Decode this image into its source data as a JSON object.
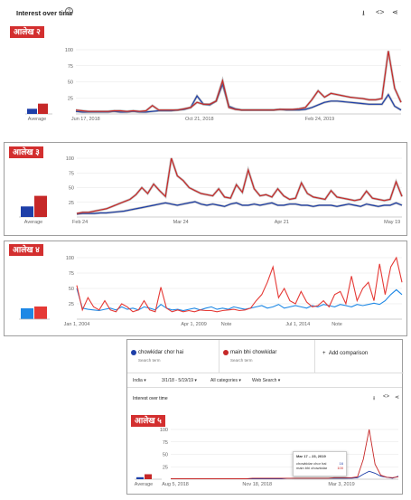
{
  "panel1": {
    "title": "Interest over time",
    "badge": "आलेख २",
    "average_label": "Average",
    "avg_values": [
      8,
      16
    ],
    "chart_data": {
      "type": "line",
      "x_ticks": [
        "Jun 17, 2018",
        "Oct 21, 2018",
        "Feb 24, 2019"
      ],
      "y_ticks": [
        "100",
        "75",
        "50",
        "25"
      ],
      "ylim": [
        0,
        100
      ],
      "series": [
        {
          "color": "#1e3fa8",
          "values": [
            4,
            3,
            3,
            3,
            3,
            3,
            4,
            3,
            3,
            4,
            3,
            3,
            4,
            5,
            5,
            5,
            6,
            7,
            10,
            28,
            15,
            14,
            20,
            46,
            12,
            8,
            6,
            6,
            6,
            6,
            6,
            6,
            7,
            6,
            6,
            6,
            7,
            10,
            14,
            18,
            20,
            20,
            19,
            18,
            17,
            16,
            15,
            15,
            15,
            30,
            12,
            6
          ]
        },
        {
          "color": "#c62828",
          "values": [
            6,
            5,
            4,
            4,
            4,
            4,
            5,
            5,
            4,
            5,
            4,
            5,
            13,
            6,
            6,
            6,
            6,
            8,
            10,
            18,
            15,
            15,
            20,
            52,
            10,
            7,
            6,
            6,
            6,
            6,
            6,
            6,
            7,
            7,
            7,
            8,
            10,
            22,
            36,
            26,
            32,
            30,
            28,
            26,
            25,
            24,
            22,
            22,
            24,
            98,
            40,
            18
          ]
        }
      ]
    }
  },
  "panel2": {
    "badge": "आलेख ३",
    "average_label": "Average",
    "avg_values": [
      18,
      36
    ],
    "chart_data": {
      "type": "line",
      "x_ticks": [
        "Feb 24",
        "Mar 24",
        "Apr 21",
        "May 19"
      ],
      "y_ticks": [
        "100",
        "75",
        "50",
        "25"
      ],
      "ylim": [
        0,
        100
      ],
      "series": [
        {
          "color": "#1e3fa8",
          "values": [
            5,
            6,
            6,
            6,
            7,
            7,
            8,
            9,
            10,
            12,
            14,
            16,
            18,
            20,
            22,
            24,
            22,
            20,
            22,
            24,
            26,
            22,
            20,
            22,
            20,
            18,
            22,
            24,
            20,
            20,
            22,
            20,
            22,
            24,
            20,
            20,
            22,
            22,
            20,
            20,
            18,
            20,
            20,
            20,
            18,
            20,
            22,
            20,
            18,
            22,
            20,
            18,
            20,
            20,
            24,
            20
          ]
        },
        {
          "color": "#c62828",
          "values": [
            6,
            8,
            8,
            10,
            12,
            14,
            18,
            22,
            26,
            30,
            38,
            50,
            40,
            56,
            45,
            35,
            100,
            70,
            62,
            50,
            45,
            40,
            38,
            36,
            48,
            34,
            32,
            55,
            42,
            80,
            48,
            36,
            38,
            34,
            48,
            36,
            30,
            32,
            58,
            40,
            34,
            32,
            30,
            45,
            34,
            32,
            30,
            28,
            30,
            44,
            32,
            30,
            28,
            30,
            60,
            35
          ]
        }
      ]
    }
  },
  "panel3": {
    "badge": "आलेख ४",
    "chart_data": {
      "type": "line",
      "x_ticks": [
        "Jan 1, 2004",
        "Apr 1, 2009",
        "Note",
        "Jul 1, 2014",
        "Note"
      ],
      "y_ticks": [
        "100",
        "75",
        "50",
        "25"
      ],
      "ylim": [
        0,
        100
      ],
      "series": [
        {
          "color": "#1e88e5",
          "values": [
            50,
            18,
            16,
            15,
            14,
            16,
            18,
            15,
            20,
            16,
            18,
            15,
            20,
            18,
            15,
            24,
            18,
            15,
            16,
            14,
            16,
            18,
            15,
            18,
            20,
            16,
            18,
            16,
            20,
            18,
            16,
            18,
            20,
            22,
            18,
            20,
            24,
            18,
            20,
            22,
            20,
            18,
            22,
            20,
            24,
            22,
            20,
            24,
            22,
            20,
            24,
            22,
            24,
            26,
            24,
            30,
            40,
            48,
            40
          ]
        },
        {
          "color": "#e53935",
          "values": [
            55,
            15,
            35,
            20,
            15,
            30,
            15,
            12,
            25,
            20,
            12,
            15,
            30,
            15,
            12,
            52,
            18,
            12,
            15,
            12,
            14,
            12,
            15,
            14,
            14,
            12,
            14,
            15,
            16,
            14,
            15,
            18,
            30,
            40,
            60,
            85,
            35,
            50,
            30,
            25,
            45,
            28,
            20,
            22,
            30,
            20,
            40,
            45,
            25,
            70,
            30,
            50,
            60,
            30,
            90,
            40,
            85,
            100,
            60
          ]
        }
      ]
    }
  },
  "panel4": {
    "terms": [
      {
        "name": "chowkidar chor hai",
        "sub": "Search term",
        "color": "#1e3fa8"
      },
      {
        "name": "main bhi chowkidar",
        "sub": "Search term",
        "color": "#c62828"
      }
    ],
    "add_comparison": "Add comparison",
    "filters": [
      "India ▾",
      "3/1/18 - 5/19/19 ▾",
      "All categories ▾",
      "Web Search ▾"
    ],
    "title": "Interest over time",
    "badge": "आलेख ५",
    "average_label": "Average",
    "avg_values": [
      4,
      10
    ],
    "tooltip": {
      "date": "Mar 17 – 23, 2019",
      "row1_label": "chowkidar chor hai",
      "row1_value": "16",
      "row2_label": "main bhi chowkidar",
      "row2_value": "100"
    },
    "chart_data": {
      "type": "line",
      "x_ticks": [
        "Aug 5, 2018",
        "Nov 18, 2018",
        "Mar 3, 2019"
      ],
      "y_ticks": [
        "100",
        "75",
        "50",
        "25"
      ],
      "ylim": [
        0,
        100
      ],
      "series": [
        {
          "color": "#1e3fa8",
          "values": [
            1,
            1,
            1,
            1,
            1,
            1,
            1,
            1,
            1,
            1,
            1,
            1,
            1,
            1,
            1,
            1,
            1,
            1,
            1,
            1,
            2,
            2,
            2,
            2,
            2,
            2,
            2,
            2,
            2,
            2,
            2,
            2,
            3,
            10,
            16,
            12,
            6,
            4,
            2,
            6
          ]
        },
        {
          "color": "#c62828",
          "values": [
            1,
            1,
            1,
            1,
            1,
            1,
            1,
            1,
            1,
            1,
            1,
            1,
            1,
            1,
            2,
            2,
            2,
            2,
            2,
            2,
            2,
            2,
            2,
            2,
            2,
            2,
            2,
            2,
            3,
            3,
            3,
            3,
            5,
            40,
            100,
            30,
            8,
            4,
            3,
            5
          ]
        }
      ]
    }
  }
}
